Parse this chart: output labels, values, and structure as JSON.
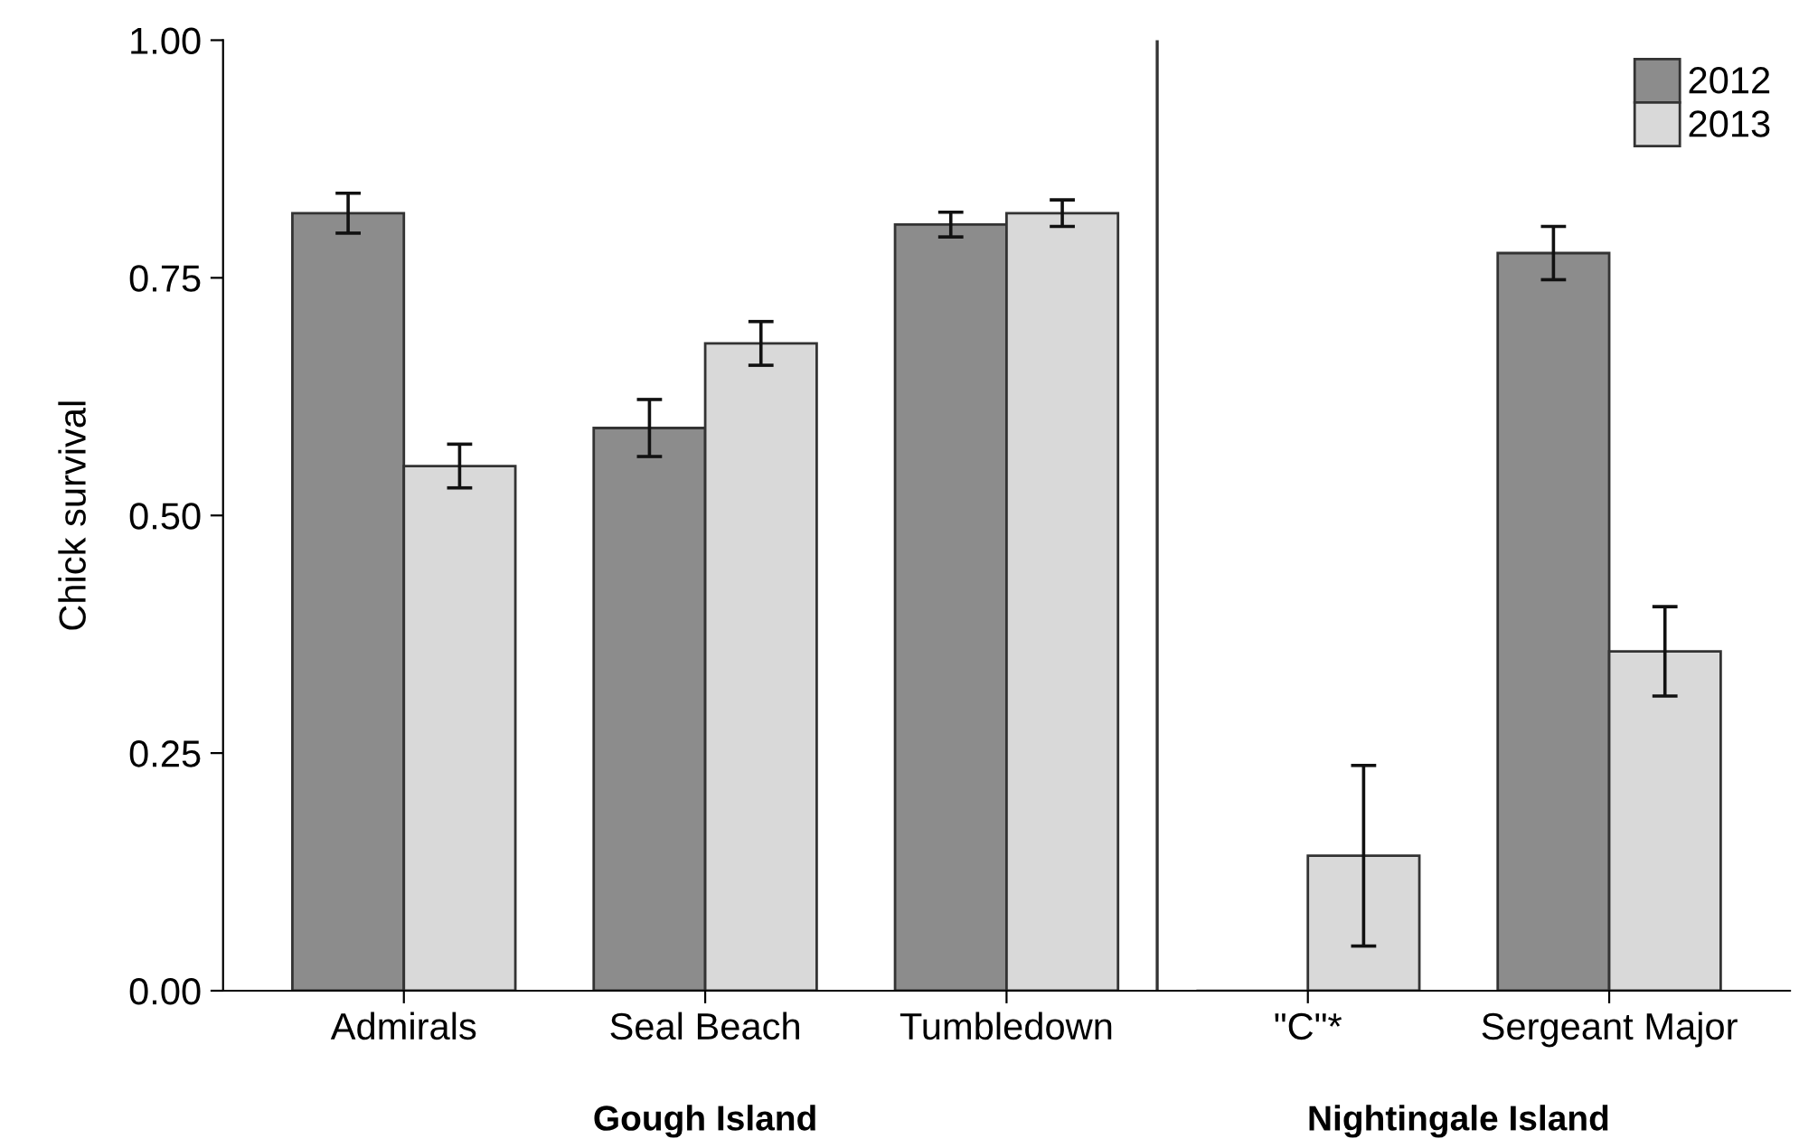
{
  "chart_data": {
    "type": "bar",
    "ylabel": "Chick survival",
    "categories": [
      "Admirals",
      "Seal Beach",
      "Tumbledown",
      "\"C\"*",
      "Sergeant Major"
    ],
    "series": [
      {
        "name": "2012",
        "color": "#8c8c8c",
        "values": [
          0.818,
          0.592,
          0.806,
          0,
          0.776
        ],
        "errors": [
          0.021,
          0.03,
          0.013,
          null,
          0.028
        ]
      },
      {
        "name": "2013",
        "color": "#d9d9d9",
        "values": [
          0.552,
          0.681,
          0.818,
          0.142,
          0.357
        ],
        "errors": [
          0.023,
          0.023,
          0.014,
          0.095,
          0.047
        ]
      }
    ],
    "ylim": [
      0,
      1
    ],
    "yticks": [
      {
        "value": 0,
        "label": "0.00"
      },
      {
        "value": 0.25,
        "label": "0.25"
      },
      {
        "value": 0.5,
        "label": "0.50"
      },
      {
        "value": 0.75,
        "label": "0.75"
      },
      {
        "value": 1,
        "label": "1.00"
      }
    ],
    "annotations": [
      "Gough Island",
      "Nightingale Island"
    ],
    "legend": "top right",
    "grid": false
  }
}
